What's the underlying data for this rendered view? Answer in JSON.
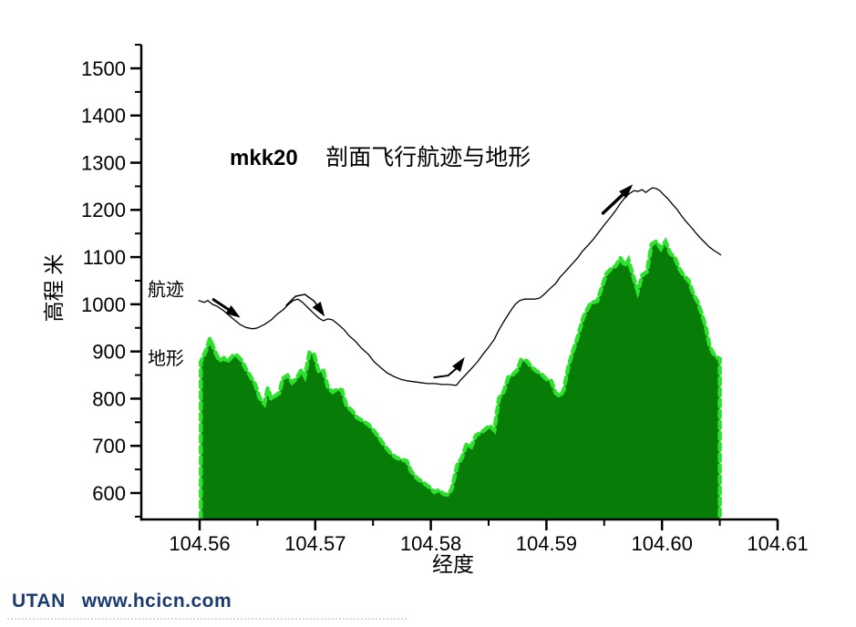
{
  "page": {
    "background": "#ffffff"
  },
  "watermark": {
    "brand": "UTAN",
    "url": "www.hcicn.com",
    "color": "#1b3a70"
  },
  "chart_data": {
    "type": "area+line",
    "title": {
      "prefix": "mkk20",
      "text": "剖面飞行航迹与地形"
    },
    "xlabel": "经度",
    "ylabel": "高程 米",
    "grid": false,
    "legend": "inline-labels",
    "xlim": [
      104.555,
      104.6101
    ],
    "ylim": [
      545,
      1550
    ],
    "x_ticks": [
      104.56,
      104.57,
      104.58,
      104.59,
      104.6,
      104.61
    ],
    "x_minor_ticks": [
      104.565,
      104.575,
      104.585,
      104.595,
      104.605
    ],
    "y_ticks": [
      600,
      700,
      800,
      900,
      1000,
      1100,
      1200,
      1300,
      1400,
      1500
    ],
    "y_minor_step": 50,
    "colors": {
      "track": "#000000",
      "terrain_fill": "#077d07",
      "terrain_edge": "#2de22d",
      "axis": "#000000"
    },
    "series": [
      {
        "name": "航迹",
        "type": "line",
        "color": "#000000",
        "points": [
          [
            104.5599,
            1008
          ],
          [
            104.5604,
            1004
          ],
          [
            104.5607,
            1008
          ],
          [
            104.5611,
            1000
          ],
          [
            104.5615,
            996
          ],
          [
            104.5621,
            986
          ],
          [
            104.5626,
            975
          ],
          [
            104.5631,
            965
          ],
          [
            104.5635,
            957
          ],
          [
            104.564,
            951
          ],
          [
            104.5646,
            948
          ],
          [
            104.565,
            950
          ],
          [
            104.5656,
            957
          ],
          [
            104.5662,
            967
          ],
          [
            104.5667,
            979
          ],
          [
            104.5672,
            988
          ],
          [
            104.5677,
            1000
          ],
          [
            104.5681,
            1008
          ],
          [
            104.5685,
            1011
          ],
          [
            104.5689,
            1004
          ],
          [
            104.5694,
            992
          ],
          [
            104.5699,
            980
          ],
          [
            104.5703,
            971
          ],
          [
            104.5707,
            965
          ],
          [
            104.5711,
            969
          ],
          [
            104.5715,
            967
          ],
          [
            104.572,
            957
          ],
          [
            104.5725,
            946
          ],
          [
            104.5729,
            934
          ],
          [
            104.5735,
            921
          ],
          [
            104.574,
            907
          ],
          [
            104.5746,
            894
          ],
          [
            104.5751,
            878
          ],
          [
            104.5757,
            865
          ],
          [
            104.5762,
            855
          ],
          [
            104.5768,
            847
          ],
          [
            104.5774,
            841
          ],
          [
            104.5779,
            838
          ],
          [
            104.5785,
            836
          ],
          [
            104.5791,
            834
          ],
          [
            104.5797,
            832
          ],
          [
            104.5803,
            832
          ],
          [
            104.581,
            830
          ],
          [
            104.5815,
            830
          ],
          [
            104.5822,
            828
          ],
          [
            104.5826,
            840
          ],
          [
            104.5831,
            853
          ],
          [
            104.5836,
            866
          ],
          [
            104.5841,
            880
          ],
          [
            104.5845,
            894
          ],
          [
            104.585,
            909
          ],
          [
            104.5855,
            926
          ],
          [
            104.5859,
            946
          ],
          [
            104.5864,
            967
          ],
          [
            104.5869,
            986
          ],
          [
            104.5873,
            1000
          ],
          [
            104.5877,
            1008
          ],
          [
            104.5881,
            1011
          ],
          [
            104.5885,
            1011
          ],
          [
            104.589,
            1011
          ],
          [
            104.5894,
            1013
          ],
          [
            104.5898,
            1021
          ],
          [
            104.5903,
            1033
          ],
          [
            104.5908,
            1044
          ],
          [
            104.5912,
            1058
          ],
          [
            104.5917,
            1071
          ],
          [
            104.5922,
            1085
          ],
          [
            104.5927,
            1098
          ],
          [
            104.5931,
            1112
          ],
          [
            104.5936,
            1125
          ],
          [
            104.5941,
            1139
          ],
          [
            104.5945,
            1152
          ],
          [
            104.595,
            1168
          ],
          [
            104.5955,
            1183
          ],
          [
            104.596,
            1199
          ],
          [
            104.5964,
            1214
          ],
          [
            104.5968,
            1226
          ],
          [
            104.5972,
            1235
          ],
          [
            104.5976,
            1241
          ],
          [
            104.5979,
            1239
          ],
          [
            104.5983,
            1243
          ],
          [
            104.5986,
            1237
          ],
          [
            104.5989,
            1243
          ],
          [
            104.5992,
            1247
          ],
          [
            104.5995,
            1245
          ],
          [
            104.5998,
            1241
          ],
          [
            104.6001,
            1233
          ],
          [
            104.6005,
            1224
          ],
          [
            104.6009,
            1212
          ],
          [
            104.6013,
            1201
          ],
          [
            104.6017,
            1187
          ],
          [
            104.6021,
            1175
          ],
          [
            104.6025,
            1164
          ],
          [
            104.6029,
            1152
          ],
          [
            104.6033,
            1141
          ],
          [
            104.6037,
            1131
          ],
          [
            104.6041,
            1121
          ],
          [
            104.6045,
            1114
          ],
          [
            104.6049,
            1108
          ],
          [
            104.6051,
            1104
          ]
        ]
      },
      {
        "name": "地形",
        "type": "area",
        "color": "#077d07",
        "edge": "#2de22d",
        "points": [
          [
            104.5601,
            546
          ],
          [
            104.5601,
            878
          ],
          [
            104.5606,
            905
          ],
          [
            104.5609,
            928
          ],
          [
            104.5613,
            901
          ],
          [
            104.5617,
            880
          ],
          [
            104.5621,
            886
          ],
          [
            104.5624,
            878
          ],
          [
            104.5629,
            892
          ],
          [
            104.5632,
            892
          ],
          [
            104.5636,
            882
          ],
          [
            104.564,
            863
          ],
          [
            104.5644,
            847
          ],
          [
            104.5648,
            830
          ],
          [
            104.5652,
            801
          ],
          [
            104.5656,
            789
          ],
          [
            104.5659,
            822
          ],
          [
            104.5662,
            799
          ],
          [
            104.5666,
            807
          ],
          [
            104.5669,
            812
          ],
          [
            104.5672,
            843
          ],
          [
            104.5676,
            849
          ],
          [
            104.568,
            834
          ],
          [
            104.5684,
            843
          ],
          [
            104.5688,
            861
          ],
          [
            104.5691,
            847
          ],
          [
            104.5695,
            897
          ],
          [
            104.5699,
            894
          ],
          [
            104.5703,
            857
          ],
          [
            104.5707,
            859
          ],
          [
            104.5711,
            824
          ],
          [
            104.5715,
            814
          ],
          [
            104.5719,
            820
          ],
          [
            104.5723,
            818
          ],
          [
            104.5727,
            785
          ],
          [
            104.5732,
            774
          ],
          [
            104.5736,
            760
          ],
          [
            104.5741,
            753
          ],
          [
            104.5746,
            745
          ],
          [
            104.5751,
            731
          ],
          [
            104.5755,
            718
          ],
          [
            104.576,
            700
          ],
          [
            104.5765,
            685
          ],
          [
            104.577,
            675
          ],
          [
            104.5774,
            671
          ],
          [
            104.5779,
            668
          ],
          [
            104.5783,
            646
          ],
          [
            104.5788,
            631
          ],
          [
            104.5794,
            621
          ],
          [
            104.5799,
            612
          ],
          [
            104.5803,
            602
          ],
          [
            104.5807,
            606
          ],
          [
            104.5811,
            598
          ],
          [
            104.5815,
            596
          ],
          [
            104.5818,
            608
          ],
          [
            104.5823,
            660
          ],
          [
            104.5827,
            675
          ],
          [
            104.5831,
            704
          ],
          [
            104.5835,
            698
          ],
          [
            104.5839,
            722
          ],
          [
            104.5845,
            731
          ],
          [
            104.5851,
            743
          ],
          [
            104.5855,
            733
          ],
          [
            104.5859,
            801
          ],
          [
            104.5863,
            814
          ],
          [
            104.5867,
            845
          ],
          [
            104.5871,
            851
          ],
          [
            104.5875,
            861
          ],
          [
            104.5878,
            882
          ],
          [
            104.5883,
            880
          ],
          [
            104.5887,
            867
          ],
          [
            104.5891,
            859
          ],
          [
            104.5896,
            851
          ],
          [
            104.59,
            841
          ],
          [
            104.5904,
            838
          ],
          [
            104.5908,
            812
          ],
          [
            104.5912,
            805
          ],
          [
            104.5915,
            818
          ],
          [
            104.5919,
            868
          ],
          [
            104.5923,
            901
          ],
          [
            104.5927,
            930
          ],
          [
            104.5932,
            973
          ],
          [
            104.5938,
            1002
          ],
          [
            104.5944,
            1007
          ],
          [
            104.5948,
            1036
          ],
          [
            104.5952,
            1065
          ],
          [
            104.5956,
            1075
          ],
          [
            104.596,
            1081
          ],
          [
            104.5964,
            1098
          ],
          [
            104.5968,
            1081
          ],
          [
            104.5971,
            1094
          ],
          [
            104.5975,
            1060
          ],
          [
            104.5979,
            1027
          ],
          [
            104.5983,
            1062
          ],
          [
            104.5987,
            1069
          ],
          [
            104.5991,
            1127
          ],
          [
            104.5995,
            1133
          ],
          [
            104.5999,
            1118
          ],
          [
            104.6003,
            1133
          ],
          [
            104.6007,
            1108
          ],
          [
            104.6011,
            1100
          ],
          [
            104.6015,
            1075
          ],
          [
            104.6019,
            1060
          ],
          [
            104.6023,
            1050
          ],
          [
            104.6027,
            1023
          ],
          [
            104.6031,
            1004
          ],
          [
            104.6035,
            975
          ],
          [
            104.6038,
            950
          ],
          [
            104.6041,
            913
          ],
          [
            104.6044,
            897
          ],
          [
            104.6047,
            888
          ],
          [
            104.605,
            884
          ],
          [
            104.605,
            546
          ]
        ]
      }
    ],
    "annotations": {
      "series_labels": [
        {
          "text": "航迹",
          "lon": 104.5555,
          "alt": 1018
        },
        {
          "text": "地形",
          "lon": 104.5555,
          "alt": 872
        }
      ],
      "arrows": [
        {
          "weight": 3.0,
          "points": [
            [
              104.5612,
              1010
            ],
            [
              104.5623,
              992
            ],
            [
              104.5632,
              977
            ]
          ]
        },
        {
          "weight": 1.5,
          "points": [
            [
              104.5675,
              998
            ],
            [
              104.5683,
              1017
            ],
            [
              104.5691,
              1021
            ],
            [
              104.5699,
              1007
            ],
            [
              104.5706,
              982
            ]
          ]
        },
        {
          "weight": 2.0,
          "points": [
            [
              104.5803,
              845
            ],
            [
              104.5815,
              849
            ],
            [
              104.5823,
              866
            ],
            [
              104.5827,
              880
            ]
          ]
        },
        {
          "weight": 3.5,
          "points": [
            [
              104.5949,
              1193
            ],
            [
              104.5959,
              1216
            ],
            [
              104.5968,
              1237
            ],
            [
              104.5972,
              1247
            ]
          ]
        }
      ]
    }
  }
}
